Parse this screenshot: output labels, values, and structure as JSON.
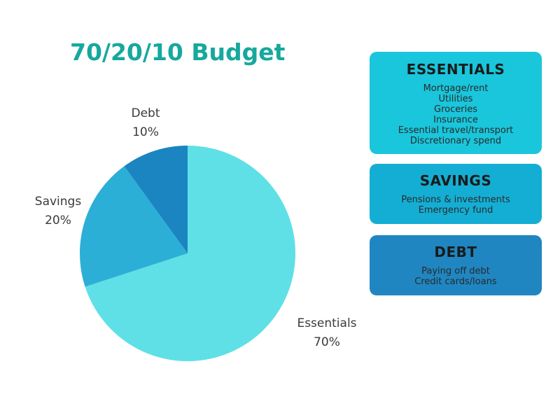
{
  "colors": {
    "title": "#16a89e",
    "essentials": "#5fe0e6",
    "savings": "#2cafd6",
    "debt": "#1a85c0",
    "box_essentials": "#19c6dc",
    "box_savings": "#14aed4",
    "box_debt": "#1f86c2"
  },
  "categories": [
    {
      "id": "essentials",
      "title": "ESSENTIALS",
      "items": [
        "Mortgage/rent",
        "Utilities",
        "Groceries",
        "Insurance",
        "Essential travel/transport",
        "Discretionary spend"
      ]
    },
    {
      "id": "savings",
      "title": "SAVINGS",
      "items": [
        "Pensions & investments",
        "Emergency fund"
      ]
    },
    {
      "id": "debt",
      "title": "DEBT",
      "items": [
        "Paying off debt",
        "Credit cards/loans"
      ]
    }
  ],
  "chart_data": {
    "type": "pie",
    "title": "70/20/10 Budget",
    "slices": [
      {
        "name": "Essentials",
        "value": 70,
        "label": "70%",
        "color": "#5fe0e6"
      },
      {
        "name": "Savings",
        "value": 20,
        "label": "20%",
        "color": "#2cafd6"
      },
      {
        "name": "Debt",
        "value": 10,
        "label": "10%",
        "color": "#1a85c0"
      }
    ],
    "start": "12 o'clock",
    "direction": "clockwise",
    "legend": "none",
    "label_placement": "outside"
  }
}
